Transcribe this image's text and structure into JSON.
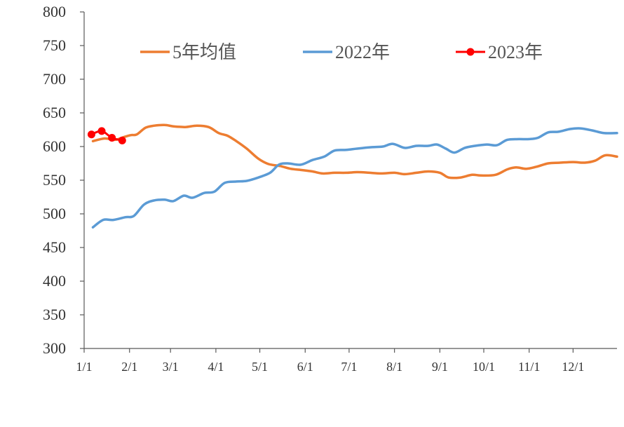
{
  "chart_data": {
    "type": "line",
    "title": "",
    "xlabel": "",
    "ylabel": "",
    "ylim": [
      300,
      800
    ],
    "yticks": [
      300,
      350,
      400,
      450,
      500,
      550,
      600,
      650,
      700,
      750,
      800
    ],
    "x_unit": "day of year",
    "xlim": [
      1,
      365
    ],
    "xtick_labels": [
      "1/1",
      "2/1",
      "3/1",
      "4/1",
      "5/1",
      "6/1",
      "7/1",
      "8/1",
      "9/1",
      "10/1",
      "11/1",
      "12/1"
    ],
    "xtick_days": [
      1,
      32,
      60,
      91,
      121,
      152,
      182,
      213,
      244,
      274,
      305,
      335
    ],
    "grid": false,
    "legend_position": "top",
    "series": [
      {
        "name": "5年均值",
        "color": "#ED7D31",
        "marker": false,
        "points": [
          [
            7,
            608
          ],
          [
            15,
            612
          ],
          [
            22,
            610
          ],
          [
            28,
            614
          ],
          [
            33,
            617
          ],
          [
            37,
            618
          ],
          [
            43,
            628
          ],
          [
            49,
            631
          ],
          [
            56,
            632
          ],
          [
            62,
            630
          ],
          [
            70,
            629
          ],
          [
            78,
            631
          ],
          [
            86,
            629
          ],
          [
            93,
            620
          ],
          [
            99,
            616
          ],
          [
            105,
            608
          ],
          [
            112,
            597
          ],
          [
            120,
            582
          ],
          [
            127,
            574
          ],
          [
            135,
            571
          ],
          [
            142,
            567
          ],
          [
            150,
            565
          ],
          [
            157,
            563
          ],
          [
            164,
            560
          ],
          [
            172,
            561
          ],
          [
            180,
            561
          ],
          [
            188,
            562
          ],
          [
            196,
            561
          ],
          [
            204,
            560
          ],
          [
            213,
            561
          ],
          [
            220,
            559
          ],
          [
            228,
            561
          ],
          [
            236,
            563
          ],
          [
            244,
            561
          ],
          [
            250,
            554
          ],
          [
            258,
            554
          ],
          [
            266,
            558
          ],
          [
            272,
            557
          ],
          [
            282,
            558
          ],
          [
            290,
            566
          ],
          [
            296,
            569
          ],
          [
            303,
            567
          ],
          [
            310,
            570
          ],
          [
            318,
            575
          ],
          [
            326,
            576
          ],
          [
            335,
            577
          ],
          [
            343,
            576
          ],
          [
            350,
            579
          ],
          [
            357,
            587
          ],
          [
            365,
            585
          ]
        ]
      },
      {
        "name": "2022年",
        "color": "#5B9BD5",
        "marker": false,
        "points": [
          [
            7,
            480
          ],
          [
            14,
            491
          ],
          [
            21,
            491
          ],
          [
            29,
            495
          ],
          [
            35,
            497
          ],
          [
            42,
            514
          ],
          [
            49,
            520
          ],
          [
            56,
            521
          ],
          [
            62,
            519
          ],
          [
            69,
            527
          ],
          [
            75,
            524
          ],
          [
            83,
            531
          ],
          [
            90,
            533
          ],
          [
            97,
            546
          ],
          [
            105,
            548
          ],
          [
            112,
            549
          ],
          [
            120,
            554
          ],
          [
            128,
            561
          ],
          [
            134,
            573
          ],
          [
            140,
            575
          ],
          [
            149,
            573
          ],
          [
            157,
            580
          ],
          [
            165,
            585
          ],
          [
            172,
            594
          ],
          [
            180,
            595
          ],
          [
            188,
            597
          ],
          [
            197,
            599
          ],
          [
            205,
            600
          ],
          [
            212,
            604
          ],
          [
            220,
            598
          ],
          [
            228,
            601
          ],
          [
            236,
            601
          ],
          [
            242,
            603
          ],
          [
            248,
            597
          ],
          [
            254,
            591
          ],
          [
            261,
            598
          ],
          [
            268,
            601
          ],
          [
            276,
            603
          ],
          [
            283,
            602
          ],
          [
            290,
            610
          ],
          [
            298,
            611
          ],
          [
            305,
            611
          ],
          [
            311,
            613
          ],
          [
            318,
            621
          ],
          [
            325,
            622
          ],
          [
            333,
            626
          ],
          [
            340,
            627
          ],
          [
            348,
            624
          ],
          [
            356,
            620
          ],
          [
            365,
            620
          ]
        ]
      },
      {
        "name": "2023年",
        "color": "#FF0000",
        "marker": true,
        "points": [
          [
            6,
            618
          ],
          [
            13,
            623
          ],
          [
            20,
            613
          ],
          [
            27,
            609
          ]
        ]
      }
    ]
  }
}
